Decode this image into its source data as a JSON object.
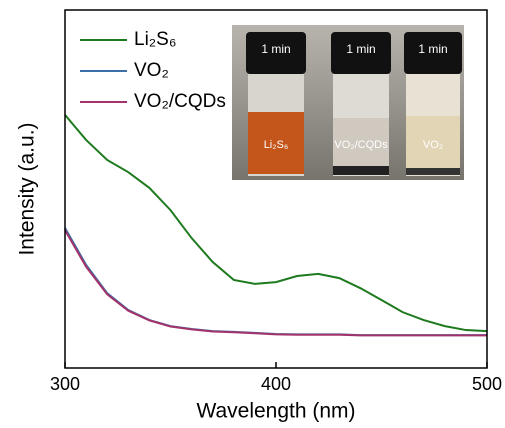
{
  "chart_data": {
    "type": "line",
    "xlabel": "Wavelength (nm)",
    "ylabel": "Intensity (a.u.)",
    "x": [
      300,
      310,
      320,
      330,
      340,
      350,
      360,
      370,
      380,
      390,
      400,
      410,
      420,
      430,
      440,
      450,
      460,
      470,
      480,
      490,
      500
    ],
    "series": [
      {
        "name": "Li₂S₆",
        "color": "#1e7a1e",
        "values": [
          0.707,
          0.637,
          0.581,
          0.547,
          0.503,
          0.441,
          0.363,
          0.296,
          0.246,
          0.235,
          0.24,
          0.257,
          0.263,
          0.251,
          0.223,
          0.19,
          0.156,
          0.134,
          0.117,
          0.106,
          0.103
        ]
      },
      {
        "name": "VO₂",
        "color": "#3d6fa8",
        "values": [
          0.391,
          0.288,
          0.209,
          0.162,
          0.134,
          0.117,
          0.109,
          0.103,
          0.101,
          0.098,
          0.095,
          0.094,
          0.094,
          0.094,
          0.092,
          0.092,
          0.092,
          0.092,
          0.092,
          0.092,
          0.092
        ]
      },
      {
        "name": "VO₂/CQDs",
        "color": "#a3336a",
        "values": [
          0.385,
          0.283,
          0.206,
          0.16,
          0.133,
          0.116,
          0.108,
          0.102,
          0.1,
          0.097,
          0.094,
          0.093,
          0.093,
          0.093,
          0.091,
          0.091,
          0.091,
          0.091,
          0.091,
          0.091,
          0.091
        ]
      }
    ],
    "xlim": [
      300,
      500
    ],
    "xticks": [
      300,
      400,
      500
    ],
    "ylim": [
      0,
      1
    ],
    "inset": {
      "time_labels": [
        "1 min",
        "1 min",
        "1 min"
      ],
      "vial_labels": [
        "Li₂S₆",
        "VO₂/CQDs",
        "VO₂"
      ]
    }
  }
}
